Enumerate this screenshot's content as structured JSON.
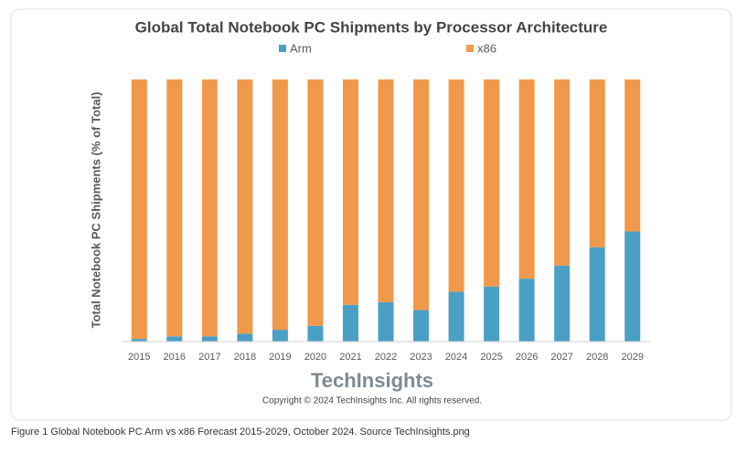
{
  "chart_data": {
    "type": "stacked_bar",
    "title": "Global Total Notebook PC Shipments by Processor Architecture",
    "y_axis_label": "Total Notebook PC Shipments (% of Total)",
    "categories": [
      "2015",
      "2016",
      "2017",
      "2018",
      "2019",
      "2020",
      "2021",
      "2022",
      "2023",
      "2024",
      "2025",
      "2026",
      "2027",
      "2028",
      "2029"
    ],
    "series": [
      {
        "name": "Arm",
        "color": "#4a9fc5",
        "values": [
          1,
          2,
          2,
          3,
          4.5,
          6,
          14,
          15,
          12,
          19,
          21,
          24,
          29,
          36,
          42
        ]
      },
      {
        "name": "x86",
        "color": "#f0994a",
        "values": [
          99,
          98,
          98,
          97,
          95.5,
          94,
          86,
          85,
          88,
          81,
          79,
          76,
          71,
          64,
          58
        ]
      }
    ],
    "ylim": [
      0,
      100
    ]
  },
  "footer": {
    "logo": "TechInsights",
    "copyright": "Copyright © 2024 TechInsights Inc.  All rights reserved."
  },
  "caption": "Figure 1 Global Notebook PC Arm vs x86 Forecast 2015-2029, October 2024. Source TechInsights.png"
}
